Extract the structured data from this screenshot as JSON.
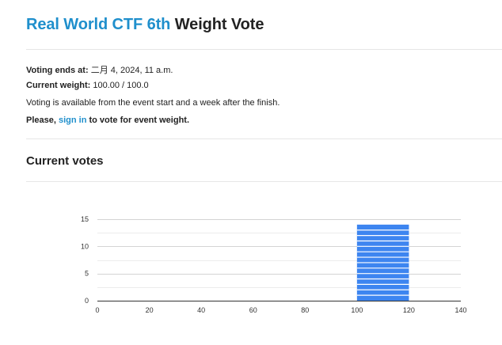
{
  "header": {
    "title_link": "Real World CTF 6th",
    "title_rest": " Weight Vote"
  },
  "info": {
    "voting_ends_label": "Voting ends at:",
    "voting_ends_value": " 二月 4, 2024, 11 a.m.",
    "current_weight_label": "Current weight:",
    "current_weight_value": " 100.00 / 100.0",
    "availability_text": "Voting is available from the event start and a week after the finish.",
    "login_prefix": "Please, ",
    "login_link": "sign in",
    "login_suffix": " to vote for event weight."
  },
  "votes_section": {
    "title": "Current votes"
  },
  "colors": {
    "link": "#1f8fcc",
    "bar": "#3d85f0",
    "grid": "#dddddd"
  },
  "chart_data": {
    "type": "bar",
    "title": "",
    "xlabel": "",
    "ylabel": "",
    "xlim": [
      0,
      140
    ],
    "ylim": [
      0,
      15
    ],
    "xticks": [
      0,
      20,
      40,
      60,
      80,
      100,
      120,
      140
    ],
    "yticks": [
      0,
      5,
      10,
      15
    ],
    "grid": true,
    "bins": [
      {
        "x_start": 100,
        "x_end": 120,
        "value": 14
      }
    ]
  }
}
